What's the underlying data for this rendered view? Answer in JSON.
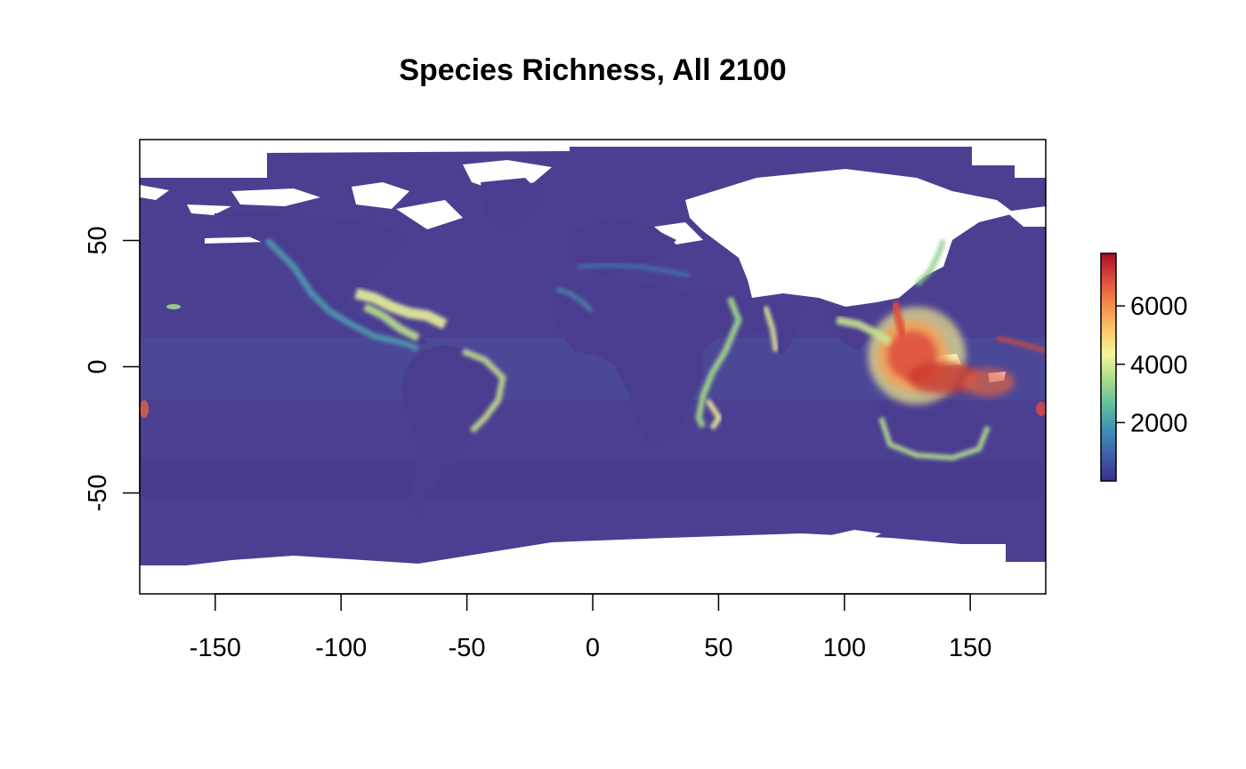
{
  "title": "Species Richness, All 2100",
  "map": {
    "projection": "equirectangular",
    "lon_range": [
      -180,
      180
    ],
    "lat_range": [
      -90,
      90
    ],
    "x_ticks": [
      -150,
      -100,
      -50,
      0,
      50,
      100,
      150
    ],
    "x_tick_labels": [
      "-150",
      "-100",
      "-50",
      "0",
      "50",
      "100",
      "150"
    ],
    "y_ticks": [
      50,
      0,
      -50
    ],
    "y_tick_labels": [
      "50",
      "0",
      "-50"
    ],
    "ocean_base_color": "#4b3f92",
    "land_color": "#ffffff"
  },
  "legend": {
    "type": "colorbar",
    "range": [
      0,
      7800
    ],
    "ticks": [
      2000,
      4000,
      6000
    ],
    "tick_labels": [
      "2000",
      "4000",
      "6000"
    ],
    "colors": [
      "#3a2e8c",
      "#3f5fa8",
      "#3d8fb5",
      "#5fbf9f",
      "#a7db8a",
      "#f5f59a",
      "#fbc669",
      "#f48a4a",
      "#dd4a3b",
      "#a50f2b"
    ]
  }
}
